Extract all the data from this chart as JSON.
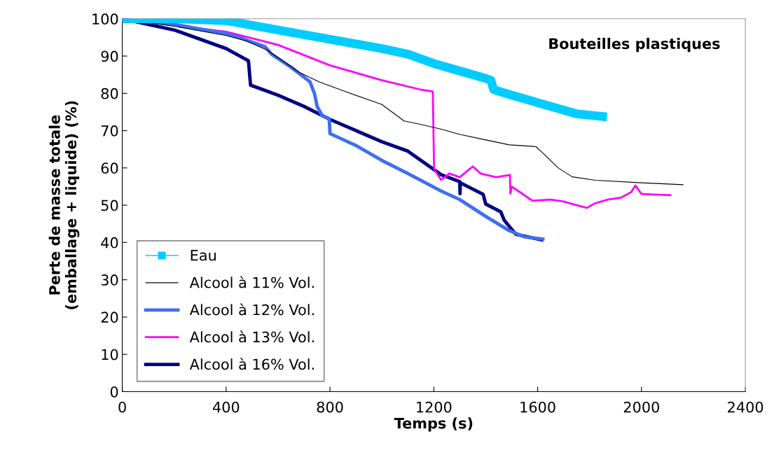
{
  "chart_data": {
    "type": "line",
    "xlabel": "Temps (s)",
    "ylabel": "Perte de masse totale\n(emballage + liquide) (%)",
    "annotations": [
      "Bouteilles plastiques"
    ],
    "xlim": [
      0,
      2400
    ],
    "xticks": [
      0,
      400,
      800,
      1200,
      1600,
      2000,
      2400
    ],
    "ylim": [
      0,
      100
    ],
    "yticks": [
      0,
      10,
      20,
      30,
      40,
      50,
      60,
      70,
      80,
      90,
      100
    ],
    "grid": false,
    "legend": "bottom left",
    "line_style": "solid",
    "series": [
      {
        "name": "Eau",
        "color": "#00ccff",
        "marker": "square",
        "x": [
          0,
          200,
          400,
          600,
          800,
          1000,
          1100,
          1200,
          1300,
          1400,
          1420,
          1430,
          1500,
          1600,
          1700,
          1750,
          1850
        ],
        "values": [
          100,
          100,
          99.5,
          97,
          94.5,
          92,
          90.5,
          88,
          86,
          84,
          83.5,
          81,
          79.5,
          77.5,
          75.5,
          74.5,
          73.8
        ]
      },
      {
        "name": "Alcool à 11% Vol.",
        "color": "#000000",
        "marker": "none",
        "x": [
          0,
          200,
          400,
          480,
          560,
          680,
          760,
          850,
          1000,
          1085,
          1147,
          1228,
          1300,
          1400,
          1490,
          1593,
          1620,
          1679,
          1733,
          1822,
          2000,
          2160
        ],
        "values": [
          100,
          98,
          95.5,
          94,
          91.5,
          85.7,
          83,
          80.7,
          77,
          72.6,
          71.7,
          70.4,
          69,
          67.5,
          66.2,
          65.7,
          64,
          60,
          57.6,
          56.7,
          56,
          55.5
        ]
      },
      {
        "name": "Alcool à 12% Vol.",
        "color": "#3f6ff0",
        "marker": "none",
        "x": [
          0,
          200,
          400,
          450,
          550,
          575,
          650,
          723,
          740,
          751,
          770,
          797,
          800,
          900,
          1000,
          1100,
          1228,
          1300,
          1400,
          1490,
          1550,
          1620
        ],
        "values": [
          100,
          98.5,
          96,
          95,
          92.5,
          90.5,
          87,
          83.1,
          80,
          76.4,
          74,
          73.2,
          69.2,
          66,
          62,
          58.5,
          53.8,
          51.5,
          47,
          43.2,
          41.5,
          40.9
        ]
      },
      {
        "name": "Alcool à 13% Vol.",
        "color": "#ff00ff",
        "marker": "none",
        "x": [
          0,
          400,
          600,
          800,
          1000,
          1150,
          1196,
          1201,
          1228,
          1260,
          1300,
          1350,
          1380,
          1440,
          1493,
          1495,
          1500,
          1580,
          1650,
          1700,
          1750,
          1790,
          1820,
          1870,
          1920,
          1960,
          1976,
          2000,
          2111
        ],
        "values": [
          100,
          96.5,
          93,
          87.5,
          83.5,
          81,
          80.5,
          59.7,
          56.8,
          58.5,
          57.5,
          60.4,
          58.5,
          57.5,
          58.1,
          53.1,
          55,
          51.2,
          51.5,
          51,
          50,
          49.3,
          50.5,
          51.5,
          52,
          53.5,
          55.3,
          53,
          52.7
        ]
      },
      {
        "name": "Alcool à 16% Vol.",
        "color": "#000080",
        "marker": "none",
        "x": [
          0,
          200,
          400,
          486,
          494,
          600,
          700,
          800,
          900,
          1000,
          1100,
          1228,
          1300,
          1301,
          1302,
          1390,
          1400,
          1458,
          1471,
          1498,
          1516,
          1615
        ],
        "values": [
          100,
          97,
          92,
          88.7,
          82.2,
          79.5,
          76.5,
          73,
          70,
          67,
          64.5,
          58.2,
          56.3,
          53.1,
          56,
          52.9,
          50.3,
          48.2,
          46,
          43.7,
          42.2,
          40.7
        ]
      }
    ]
  }
}
